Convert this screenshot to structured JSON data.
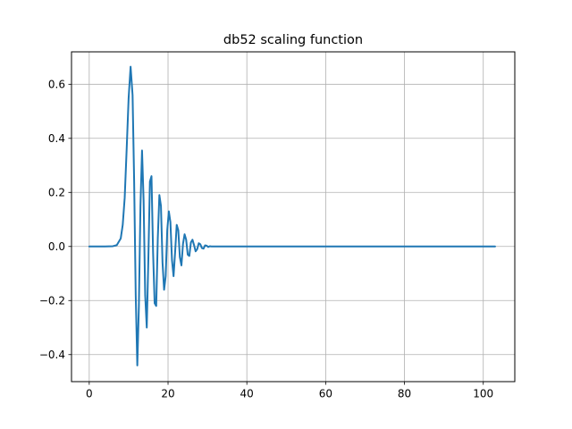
{
  "chart_data": {
    "type": "line",
    "title": "db52 scaling function",
    "xlabel": "",
    "ylabel": "",
    "xlim": [
      -4.5,
      108
    ],
    "ylim": [
      -0.5,
      0.72
    ],
    "grid": true,
    "x_ticks": [
      0,
      20,
      40,
      60,
      80,
      100
    ],
    "y_ticks": [
      -0.4,
      -0.2,
      0.0,
      0.2,
      0.4,
      0.6
    ],
    "x_tick_labels": [
      "0",
      "20",
      "40",
      "60",
      "80",
      "100"
    ],
    "y_tick_labels": [
      "−0.4",
      "−0.2",
      "0.0",
      "0.2",
      "0.4",
      "0.6"
    ],
    "series": [
      {
        "color": "#1f77b4",
        "x": [
          0,
          2,
          4,
          6,
          7,
          8,
          8.5,
          9,
          9.5,
          10,
          10.5,
          11,
          11.4,
          11.8,
          12.2,
          12.6,
          13,
          13.4,
          13.8,
          14.2,
          14.6,
          15,
          15.4,
          15.8,
          16.2,
          16.6,
          17,
          17.4,
          17.8,
          18.2,
          18.6,
          19,
          19.4,
          19.8,
          20.2,
          20.6,
          21,
          21.4,
          21.8,
          22.2,
          22.6,
          23,
          23.4,
          23.8,
          24.2,
          24.6,
          25,
          25.4,
          25.8,
          26.2,
          26.6,
          27,
          27.4,
          27.8,
          28.2,
          28.6,
          29,
          29.4,
          29.8,
          30.2,
          30.6,
          31,
          32,
          34,
          40,
          60,
          80,
          103
        ],
        "y": [
          0,
          0,
          0,
          0.001,
          0.005,
          0.03,
          0.08,
          0.18,
          0.36,
          0.55,
          0.665,
          0.56,
          0.24,
          -0.18,
          -0.44,
          -0.22,
          0.15,
          0.355,
          0.17,
          -0.18,
          -0.3,
          -0.05,
          0.24,
          0.26,
          -0.02,
          -0.21,
          -0.22,
          0.03,
          0.19,
          0.15,
          -0.06,
          -0.16,
          -0.11,
          0.06,
          0.13,
          0.09,
          -0.05,
          -0.11,
          -0.02,
          0.08,
          0.06,
          -0.04,
          -0.07,
          0.01,
          0.045,
          0.025,
          -0.03,
          -0.035,
          0.015,
          0.025,
          0.005,
          -0.018,
          -0.01,
          0.012,
          0.008,
          -0.006,
          -0.008,
          0.004,
          0.003,
          -0.002,
          0.001,
          0.0,
          0.0,
          0.0,
          0.0,
          0.0,
          0.0,
          0.0
        ]
      }
    ]
  }
}
